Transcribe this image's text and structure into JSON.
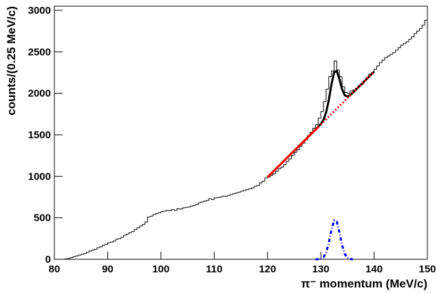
{
  "chart_data": {
    "type": "histogram",
    "x_label": "π⁻ momentum (MeV/c)",
    "y_label": "counts/(0.25 MeV/c)",
    "bins": [
      80,
      80.5,
      81,
      81.5,
      82,
      82.5,
      83,
      83.5,
      84,
      84.5,
      85,
      85.5,
      86,
      86.5,
      87,
      87.5,
      88,
      88.5,
      89,
      89.5,
      90,
      90.5,
      91,
      91.5,
      92,
      92.5,
      93,
      93.5,
      94,
      94.5,
      95,
      95.5,
      96,
      96.5,
      97,
      97.5,
      98,
      98.5,
      99,
      99.5,
      100,
      100.5,
      101,
      101.5,
      102,
      102.5,
      103,
      103.5,
      104,
      104.5,
      105,
      105.5,
      106,
      106.5,
      107,
      107.5,
      108,
      108.5,
      109,
      109.5,
      110,
      110.5,
      111,
      111.5,
      112,
      112.5,
      113,
      113.5,
      114,
      114.5,
      115,
      115.5,
      116,
      116.5,
      117,
      117.5,
      118,
      118.5,
      119,
      119.5,
      120,
      120.5,
      121,
      121.5,
      122,
      122.5,
      123,
      123.5,
      124,
      124.5,
      125,
      125.5,
      126,
      126.5,
      127,
      127.5,
      128,
      128.5,
      129,
      129.5,
      130,
      130.5,
      131,
      131.5,
      132,
      132.5,
      133,
      133.5,
      134,
      134.5,
      135,
      135.5,
      136,
      136.5,
      137,
      137.5,
      138,
      138.5,
      139,
      139.5,
      140,
      140.5,
      141,
      141.5,
      142,
      142.5,
      143,
      143.5,
      144,
      144.5,
      145,
      145.5,
      146,
      146.5,
      147,
      147.5,
      148,
      148.5,
      149,
      149.5,
      150
    ],
    "values": [
      0,
      0,
      0,
      0,
      5,
      10,
      20,
      30,
      40,
      50,
      60,
      70,
      85,
      100,
      110,
      120,
      140,
      150,
      170,
      180,
      200,
      205,
      220,
      240,
      250,
      265,
      290,
      305,
      320,
      335,
      360,
      380,
      400,
      420,
      450,
      510,
      520,
      540,
      550,
      560,
      575,
      580,
      590,
      585,
      600,
      590,
      610,
      605,
      620,
      625,
      630,
      640,
      650,
      660,
      680,
      690,
      700,
      710,
      730,
      720,
      740,
      745,
      750,
      760,
      760,
      770,
      780,
      790,
      800,
      810,
      820,
      830,
      840,
      850,
      860,
      880,
      890,
      920,
      940,
      980,
      990,
      1010,
      1030,
      1060,
      1090,
      1110,
      1140,
      1180,
      1210,
      1250,
      1290,
      1320,
      1360,
      1400,
      1440,
      1490,
      1530,
      1580,
      1620,
      1700,
      1780,
      1900,
      2050,
      2200,
      2270,
      2390,
      2280,
      2200,
      2080,
      2010,
      2000,
      2030,
      2040,
      2060,
      2090,
      2110,
      2150,
      2190,
      2230,
      2250,
      2290,
      2330,
      2370,
      2400,
      2430,
      2450,
      2470,
      2490,
      2520,
      2550,
      2580,
      2600,
      2620,
      2650,
      2680,
      2720,
      2750,
      2780,
      2820,
      2880
    ],
    "color": "#000000",
    "lines": [
      {
        "color": "#000000",
        "style": "solid",
        "x": [
          120,
          122,
          124,
          126,
          127,
          128,
          129,
          130,
          130.5,
          131,
          131.5,
          132,
          132.5,
          133,
          133.5,
          134,
          134.5,
          135,
          135.5,
          136,
          137,
          138,
          139,
          140
        ],
        "values": [
          990,
          1117,
          1244,
          1371,
          1435,
          1498,
          1562,
          1630,
          1681,
          1770,
          1917,
          2107,
          2252,
          2270,
          2170,
          2048,
          1976,
          1961,
          1978,
          2006,
          2070,
          2133,
          2197,
          2260
        ]
      },
      {
        "color": "#ff0000",
        "style": "solid",
        "x": [
          120,
          129.5
        ],
        "values": [
          990,
          1593
        ]
      },
      {
        "color": "#ff0000",
        "style": "dotted",
        "x": [
          129.5,
          140
        ],
        "values": [
          1593,
          2260
        ]
      },
      {
        "color": "#0000ff",
        "style": "dashdot",
        "x": [
          129,
          129.5,
          130,
          130.5,
          131,
          131.5,
          132,
          132.5,
          133,
          133.5,
          134,
          134.5,
          135,
          135.5,
          136
        ],
        "values": [
          0,
          1,
          5,
          24,
          81,
          197,
          355,
          468,
          454,
          323,
          169,
          65,
          18,
          4,
          0
        ]
      }
    ],
    "xlim": [
      80,
      150
    ],
    "xticks": [
      80,
      90,
      100,
      110,
      120,
      130,
      140,
      150
    ],
    "ylim": [
      0,
      3050
    ],
    "yticks": [
      0,
      500,
      1000,
      1500,
      2000,
      2500,
      3000
    ]
  }
}
